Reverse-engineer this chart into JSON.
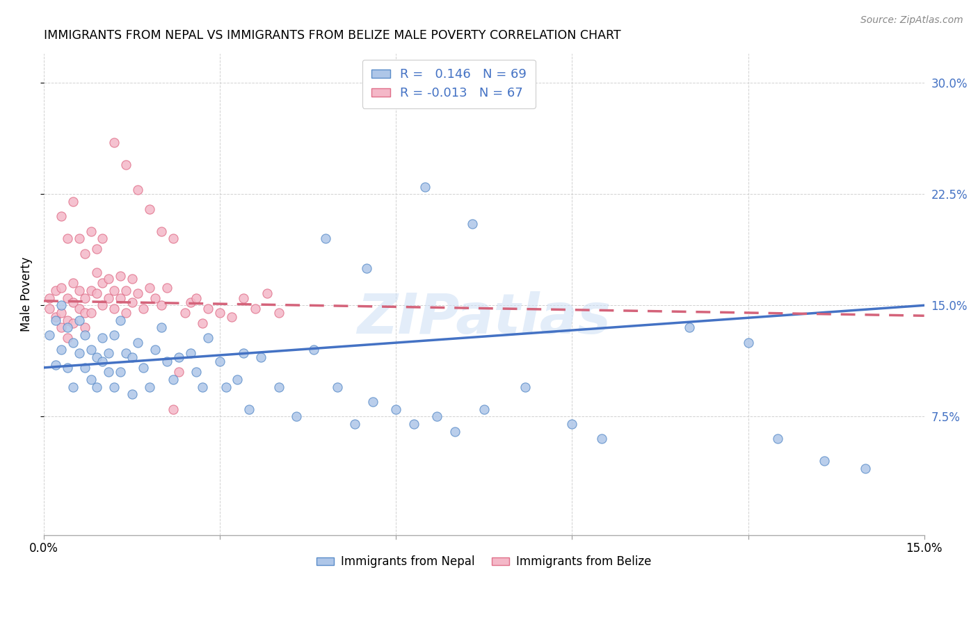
{
  "title": "IMMIGRANTS FROM NEPAL VS IMMIGRANTS FROM BELIZE MALE POVERTY CORRELATION CHART",
  "source": "Source: ZipAtlas.com",
  "ylabel": "Male Poverty",
  "ytick_labels": [
    "7.5%",
    "15.0%",
    "22.5%",
    "30.0%"
  ],
  "ytick_values": [
    0.075,
    0.15,
    0.225,
    0.3
  ],
  "xlim": [
    0.0,
    0.15
  ],
  "ylim": [
    -0.005,
    0.32
  ],
  "legend_nepal_R": "0.146",
  "legend_nepal_N": "69",
  "legend_belize_R": "-0.013",
  "legend_belize_N": "67",
  "nepal_color": "#aec6e8",
  "belize_color": "#f4b8c8",
  "nepal_edge_color": "#5b8dc9",
  "belize_edge_color": "#e0708a",
  "nepal_line_color": "#4472c4",
  "belize_line_color": "#d4637a",
  "watermark": "ZIPatlas",
  "nepal_line_x0": 0.0,
  "nepal_line_y0": 0.108,
  "nepal_line_x1": 0.15,
  "nepal_line_y1": 0.15,
  "belize_line_x0": 0.0,
  "belize_line_y0": 0.153,
  "belize_line_x1": 0.15,
  "belize_line_y1": 0.143,
  "nepal_scatter_x": [
    0.001,
    0.002,
    0.002,
    0.003,
    0.003,
    0.004,
    0.004,
    0.005,
    0.005,
    0.006,
    0.006,
    0.007,
    0.007,
    0.008,
    0.008,
    0.009,
    0.009,
    0.01,
    0.01,
    0.011,
    0.011,
    0.012,
    0.012,
    0.013,
    0.013,
    0.014,
    0.015,
    0.015,
    0.016,
    0.017,
    0.018,
    0.019,
    0.02,
    0.021,
    0.022,
    0.023,
    0.025,
    0.026,
    0.027,
    0.028,
    0.03,
    0.031,
    0.033,
    0.034,
    0.035,
    0.037,
    0.04,
    0.043,
    0.046,
    0.05,
    0.053,
    0.056,
    0.06,
    0.063,
    0.067,
    0.07,
    0.075,
    0.082,
    0.09,
    0.095,
    0.048,
    0.055,
    0.065,
    0.073,
    0.11,
    0.12,
    0.125,
    0.133,
    0.14
  ],
  "nepal_scatter_y": [
    0.13,
    0.14,
    0.11,
    0.15,
    0.12,
    0.135,
    0.108,
    0.125,
    0.095,
    0.14,
    0.118,
    0.108,
    0.13,
    0.12,
    0.1,
    0.115,
    0.095,
    0.128,
    0.112,
    0.118,
    0.105,
    0.13,
    0.095,
    0.14,
    0.105,
    0.118,
    0.115,
    0.09,
    0.125,
    0.108,
    0.095,
    0.12,
    0.135,
    0.112,
    0.1,
    0.115,
    0.118,
    0.105,
    0.095,
    0.128,
    0.112,
    0.095,
    0.1,
    0.118,
    0.08,
    0.115,
    0.095,
    0.075,
    0.12,
    0.095,
    0.07,
    0.085,
    0.08,
    0.07,
    0.075,
    0.065,
    0.08,
    0.095,
    0.07,
    0.06,
    0.195,
    0.175,
    0.23,
    0.205,
    0.135,
    0.125,
    0.06,
    0.045,
    0.04
  ],
  "belize_scatter_x": [
    0.001,
    0.001,
    0.002,
    0.002,
    0.003,
    0.003,
    0.003,
    0.004,
    0.004,
    0.004,
    0.005,
    0.005,
    0.005,
    0.006,
    0.006,
    0.007,
    0.007,
    0.007,
    0.008,
    0.008,
    0.009,
    0.009,
    0.01,
    0.01,
    0.011,
    0.011,
    0.012,
    0.012,
    0.013,
    0.013,
    0.014,
    0.014,
    0.015,
    0.015,
    0.016,
    0.017,
    0.018,
    0.019,
    0.02,
    0.021,
    0.022,
    0.023,
    0.024,
    0.025,
    0.026,
    0.027,
    0.028,
    0.03,
    0.032,
    0.034,
    0.036,
    0.038,
    0.04,
    0.003,
    0.004,
    0.005,
    0.006,
    0.007,
    0.008,
    0.009,
    0.01,
    0.012,
    0.014,
    0.016,
    0.018,
    0.02,
    0.022
  ],
  "belize_scatter_y": [
    0.155,
    0.148,
    0.16,
    0.142,
    0.162,
    0.145,
    0.135,
    0.155,
    0.14,
    0.128,
    0.152,
    0.165,
    0.138,
    0.148,
    0.16,
    0.145,
    0.155,
    0.135,
    0.16,
    0.145,
    0.172,
    0.158,
    0.165,
    0.15,
    0.168,
    0.155,
    0.16,
    0.148,
    0.155,
    0.17,
    0.145,
    0.16,
    0.152,
    0.168,
    0.158,
    0.148,
    0.162,
    0.155,
    0.15,
    0.162,
    0.08,
    0.105,
    0.145,
    0.152,
    0.155,
    0.138,
    0.148,
    0.145,
    0.142,
    0.155,
    0.148,
    0.158,
    0.145,
    0.21,
    0.195,
    0.22,
    0.195,
    0.185,
    0.2,
    0.188,
    0.195,
    0.26,
    0.245,
    0.228,
    0.215,
    0.2,
    0.195
  ]
}
